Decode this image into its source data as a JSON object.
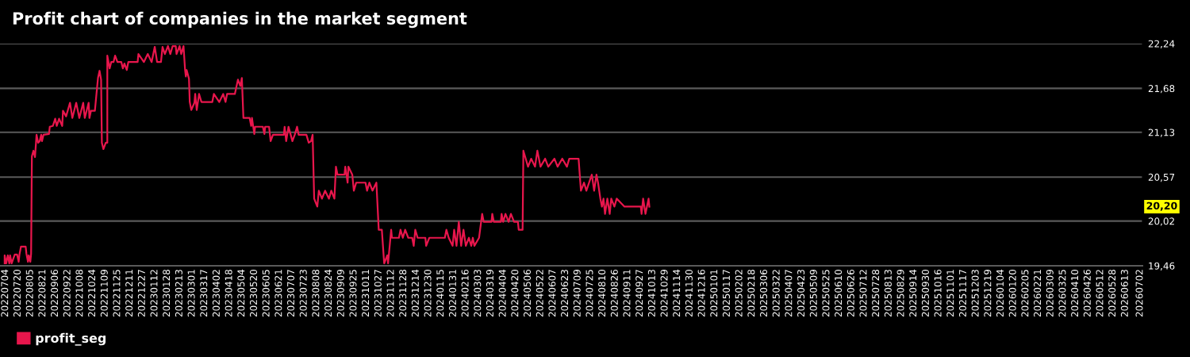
{
  "chart_data": {
    "type": "line",
    "title": "Profit chart of companies in the market segment",
    "x": [
      "2022-07-03",
      "2022-07-03",
      "2022-07-05",
      "2022-07-07",
      "2022-07-09",
      "2022-07-10",
      "2022-07-12",
      "2022-07-16",
      "2022-07-19",
      "2022-07-21",
      "2022-07-22",
      "2022-07-24",
      "2022-07-30",
      "2022-07-31",
      "2022-08-02",
      "2022-08-03",
      "2022-08-05",
      "2022-08-06",
      "2022-08-07",
      "2022-08-09",
      "2022-08-11",
      "2022-08-13",
      "2022-08-15",
      "2022-08-17",
      "2022-08-19",
      "2022-08-20",
      "2022-08-22",
      "2022-08-29",
      "2022-08-30",
      "2022-09-03",
      "2022-09-06",
      "2022-09-08",
      "2022-09-11",
      "2022-09-15",
      "2022-09-16",
      "2022-09-20",
      "2022-09-25",
      "2022-09-28",
      "2022-10-03",
      "2022-10-07",
      "2022-10-12",
      "2022-10-14",
      "2022-10-19",
      "2022-10-20",
      "2022-10-22",
      "2022-10-27",
      "2022-10-31",
      "2022-11-02",
      "2022-11-04",
      "2022-11-05",
      "2022-11-07",
      "2022-11-10",
      "2022-11-12",
      "2022-11-12",
      "2022-11-15",
      "2022-11-17",
      "2022-11-20",
      "2022-11-22",
      "2022-11-25",
      "2022-11-30",
      "2022-12-02",
      "2022-12-04",
      "2022-12-07",
      "2022-12-09",
      "2022-12-21",
      "2022-12-22",
      "2022-12-29",
      "2023-01-03",
      "2023-01-08",
      "2023-01-12",
      "2023-01-15",
      "2023-01-20",
      "2023-01-22",
      "2023-01-25",
      "2023-01-29",
      "2023-02-01",
      "2023-02-04",
      "2023-02-08",
      "2023-02-09",
      "2023-02-13",
      "2023-02-15",
      "2023-02-18",
      "2023-02-20",
      "2023-02-21",
      "2023-02-22",
      "2023-02-25",
      "2023-02-26",
      "2023-02-28",
      "2023-03-04",
      "2023-03-05",
      "2023-03-07",
      "2023-03-10",
      "2023-03-13",
      "2023-03-27",
      "2023-03-29",
      "2023-04-05",
      "2023-04-10",
      "2023-04-13",
      "2023-04-15",
      "2023-04-25",
      "2023-04-29",
      "2023-05-02",
      "2023-05-04",
      "2023-05-06",
      "2023-05-14",
      "2023-05-16",
      "2023-05-17",
      "2023-05-20",
      "2023-05-21",
      "2023-05-31",
      "2023-06-02",
      "2023-06-03",
      "2023-06-08",
      "2023-06-10",
      "2023-06-13",
      "2023-06-27",
      "2023-06-28",
      "2023-06-30",
      "2023-07-03",
      "2023-07-08",
      "2023-07-11",
      "2023-07-14",
      "2023-07-16",
      "2023-07-26",
      "2023-07-29",
      "2023-08-01",
      "2023-08-03",
      "2023-08-05",
      "2023-08-09",
      "2023-08-11",
      "2023-08-15",
      "2023-08-19",
      "2023-08-24",
      "2023-08-27",
      "2023-08-31",
      "2023-09-02",
      "2023-09-04",
      "2023-09-13",
      "2023-09-14",
      "2023-09-17",
      "2023-09-18",
      "2023-09-23",
      "2023-09-25",
      "2023-09-28",
      "2023-10-10",
      "2023-10-12",
      "2023-10-15",
      "2023-10-19",
      "2023-10-24",
      "2023-10-26",
      "2023-10-27",
      "2023-10-31",
      "2023-11-03",
      "2023-11-07",
      "2023-11-08",
      "2023-11-12",
      "2023-11-13",
      "2023-11-22",
      "2023-11-24",
      "2023-11-27",
      "2023-11-30",
      "2023-12-04",
      "2023-12-09",
      "2023-12-11",
      "2023-12-13",
      "2023-12-16",
      "2023-12-26",
      "2023-12-27",
      "2023-12-31",
      "2024-01-20",
      "2024-01-22",
      "2024-01-25",
      "2024-01-30",
      "2024-02-01",
      "2024-02-04",
      "2024-02-07",
      "2024-02-10",
      "2024-02-13",
      "2024-02-16",
      "2024-02-20",
      "2024-02-23",
      "2024-02-25",
      "2024-02-27",
      "2024-03-04",
      "2024-03-08",
      "2024-03-10",
      "2024-03-20",
      "2024-03-21",
      "2024-03-23",
      "2024-04-01",
      "2024-04-02",
      "2024-04-04",
      "2024-04-07",
      "2024-04-11",
      "2024-04-14",
      "2024-04-18",
      "2024-04-23",
      "2024-04-24",
      "2024-04-29",
      "2024-04-30",
      "2024-05-03",
      "2024-05-06",
      "2024-05-10",
      "2024-05-15",
      "2024-05-18",
      "2024-05-22",
      "2024-05-28",
      "2024-06-01",
      "2024-06-09",
      "2024-06-13",
      "2024-06-19",
      "2024-06-25",
      "2024-06-28",
      "2024-07-10",
      "2024-07-13",
      "2024-07-17",
      "2024-07-20",
      "2024-07-27",
      "2024-07-30",
      "2024-08-02",
      "2024-08-04",
      "2024-08-07",
      "2024-08-09",
      "2024-08-11",
      "2024-08-13",
      "2024-08-16",
      "2024-08-19",
      "2024-08-21",
      "2024-08-25",
      "2024-08-28",
      "2024-09-07",
      "2024-09-28",
      "2024-09-29",
      "2024-10-01",
      "2024-10-04",
      "2024-10-08",
      "2024-10-09"
    ],
    "series": [
      {
        "name": "profit_seg",
        "color": "#e8164c",
        "values": [
          19.49,
          19.59,
          19.49,
          19.59,
          19.49,
          19.59,
          19.49,
          19.6,
          19.6,
          19.51,
          19.6,
          19.7,
          19.7,
          19.61,
          19.51,
          19.59,
          19.51,
          19.61,
          20.83,
          20.9,
          20.82,
          21.1,
          21.0,
          21.02,
          21.1,
          21.02,
          21.1,
          21.11,
          21.2,
          21.21,
          21.3,
          21.21,
          21.3,
          21.21,
          21.4,
          21.33,
          21.5,
          21.31,
          21.5,
          21.31,
          21.5,
          21.31,
          21.5,
          21.31,
          21.4,
          21.4,
          21.81,
          21.9,
          21.79,
          21.0,
          20.92,
          21.0,
          21.0,
          22.09,
          21.93,
          22.01,
          22.01,
          22.09,
          22.01,
          22.01,
          21.93,
          21.99,
          21.91,
          22.01,
          22.01,
          22.11,
          22.01,
          22.11,
          22.01,
          22.2,
          22.01,
          22.01,
          22.2,
          22.11,
          22.21,
          22.11,
          22.21,
          22.21,
          22.11,
          22.21,
          22.11,
          22.21,
          21.91,
          21.83,
          21.91,
          21.8,
          21.51,
          21.41,
          21.5,
          21.61,
          21.41,
          21.61,
          21.51,
          21.51,
          21.61,
          21.51,
          21.61,
          21.51,
          21.61,
          21.61,
          21.79,
          21.71,
          21.81,
          21.31,
          21.31,
          21.21,
          21.31,
          21.11,
          21.2,
          21.2,
          21.11,
          21.2,
          21.2,
          21.02,
          21.1,
          21.1,
          21.2,
          21.02,
          21.2,
          21.02,
          21.1,
          21.2,
          21.1,
          21.1,
          21.0,
          21.02,
          21.1,
          20.3,
          20.2,
          20.4,
          20.3,
          20.4,
          20.3,
          20.4,
          20.3,
          20.7,
          20.6,
          20.6,
          20.7,
          20.5,
          20.7,
          20.6,
          20.4,
          20.5,
          20.5,
          20.4,
          20.5,
          20.4,
          20.5,
          20.11,
          19.91,
          19.91,
          19.49,
          19.59,
          19.49,
          19.91,
          19.81,
          19.81,
          19.91,
          19.81,
          19.91,
          19.81,
          19.81,
          19.71,
          19.91,
          19.81,
          19.81,
          19.71,
          19.81,
          19.81,
          19.91,
          19.81,
          19.71,
          19.91,
          19.71,
          20.01,
          19.71,
          19.91,
          19.71,
          19.81,
          19.71,
          19.81,
          19.71,
          19.81,
          20.11,
          20.01,
          20.01,
          20.11,
          20.01,
          20.01,
          20.11,
          20.01,
          20.11,
          20.01,
          20.11,
          20.01,
          20.01,
          19.91,
          19.91,
          20.9,
          20.8,
          20.7,
          20.8,
          20.7,
          20.9,
          20.7,
          20.8,
          20.7,
          20.8,
          20.7,
          20.8,
          20.7,
          20.8,
          20.8,
          20.4,
          20.5,
          20.4,
          20.6,
          20.4,
          20.6,
          20.5,
          20.3,
          20.2,
          20.3,
          20.11,
          20.3,
          20.11,
          20.3,
          20.2,
          20.3,
          20.2,
          20.2,
          20.11,
          20.3,
          20.11,
          20.3,
          20.2
        ]
      }
    ],
    "ylim": [
      19.46,
      22.24
    ],
    "yticks": [
      {
        "value": 19.46,
        "label": "19,46"
      },
      {
        "value": 20.02,
        "label": "20,02"
      },
      {
        "value": 20.57,
        "label": "20,57"
      },
      {
        "value": 21.13,
        "label": "21,13"
      },
      {
        "value": 21.68,
        "label": "21,68"
      },
      {
        "value": 22.24,
        "label": "22,24"
      }
    ],
    "xlim": [
      "2022-06-27",
      "2026-07-05"
    ],
    "xticks": [
      {
        "value": "2022-07-04",
        "label": "20220704"
      },
      {
        "value": "2022-07-20",
        "label": "20220720"
      },
      {
        "value": "2022-08-05",
        "label": "20220805"
      },
      {
        "value": "2022-08-21",
        "label": "20220821"
      },
      {
        "value": "2022-09-06",
        "label": "20220906"
      },
      {
        "value": "2022-09-22",
        "label": "20220922"
      },
      {
        "value": "2022-10-08",
        "label": "20221008"
      },
      {
        "value": "2022-10-24",
        "label": "20221024"
      },
      {
        "value": "2022-11-09",
        "label": "20221109"
      },
      {
        "value": "2022-11-25",
        "label": "20221125"
      },
      {
        "value": "2022-12-11",
        "label": "20221211"
      },
      {
        "value": "2022-12-27",
        "label": "20221227"
      },
      {
        "value": "2023-01-12",
        "label": "20230112"
      },
      {
        "value": "2023-01-28",
        "label": "20230128"
      },
      {
        "value": "2023-02-13",
        "label": "20230213"
      },
      {
        "value": "2023-03-01",
        "label": "20230301"
      },
      {
        "value": "2023-03-17",
        "label": "20230317"
      },
      {
        "value": "2023-04-02",
        "label": "20230402"
      },
      {
        "value": "2023-04-18",
        "label": "20230418"
      },
      {
        "value": "2023-05-04",
        "label": "20230504"
      },
      {
        "value": "2023-05-20",
        "label": "20230520"
      },
      {
        "value": "2023-06-05",
        "label": "20230605"
      },
      {
        "value": "2023-06-21",
        "label": "20230621"
      },
      {
        "value": "2023-07-07",
        "label": "20230707"
      },
      {
        "value": "2023-07-23",
        "label": "20230723"
      },
      {
        "value": "2023-08-08",
        "label": "20230808"
      },
      {
        "value": "2023-08-24",
        "label": "20230824"
      },
      {
        "value": "2023-09-09",
        "label": "20230909"
      },
      {
        "value": "2023-09-25",
        "label": "20230925"
      },
      {
        "value": "2023-10-11",
        "label": "20231011"
      },
      {
        "value": "2023-10-27",
        "label": "20231027"
      },
      {
        "value": "2023-11-12",
        "label": "20231112"
      },
      {
        "value": "2023-11-28",
        "label": "20231128"
      },
      {
        "value": "2023-12-14",
        "label": "20231214"
      },
      {
        "value": "2023-12-30",
        "label": "20231230"
      },
      {
        "value": "2024-01-15",
        "label": "20240115"
      },
      {
        "value": "2024-01-31",
        "label": "20240131"
      },
      {
        "value": "2024-02-16",
        "label": "20240216"
      },
      {
        "value": "2024-03-03",
        "label": "20240303"
      },
      {
        "value": "2024-03-19",
        "label": "20240319"
      },
      {
        "value": "2024-04-04",
        "label": "20240404"
      },
      {
        "value": "2024-04-20",
        "label": "20240420"
      },
      {
        "value": "2024-05-06",
        "label": "20240506"
      },
      {
        "value": "2024-05-22",
        "label": "20240522"
      },
      {
        "value": "2024-06-07",
        "label": "20240607"
      },
      {
        "value": "2024-06-23",
        "label": "20240623"
      },
      {
        "value": "2024-07-09",
        "label": "20240709"
      },
      {
        "value": "2024-07-25",
        "label": "20240725"
      },
      {
        "value": "2024-08-10",
        "label": "20240810"
      },
      {
        "value": "2024-08-26",
        "label": "20240826"
      },
      {
        "value": "2024-09-11",
        "label": "20240911"
      },
      {
        "value": "2024-09-27",
        "label": "20240927"
      },
      {
        "value": "2024-10-13",
        "label": "20241013"
      },
      {
        "value": "2024-10-29",
        "label": "20241029"
      },
      {
        "value": "2024-11-14",
        "label": "20241114"
      },
      {
        "value": "2024-11-30",
        "label": "20241130"
      },
      {
        "value": "2024-12-16",
        "label": "20241216"
      },
      {
        "value": "2025-01-01",
        "label": "20250101"
      },
      {
        "value": "2025-01-17",
        "label": "20250117"
      },
      {
        "value": "2025-02-02",
        "label": "20250202"
      },
      {
        "value": "2025-02-18",
        "label": "20250218"
      },
      {
        "value": "2025-03-06",
        "label": "20250306"
      },
      {
        "value": "2025-03-22",
        "label": "20250322"
      },
      {
        "value": "2025-04-07",
        "label": "20250407"
      },
      {
        "value": "2025-04-23",
        "label": "20250423"
      },
      {
        "value": "2025-05-09",
        "label": "20250509"
      },
      {
        "value": "2025-05-25",
        "label": "20250525"
      },
      {
        "value": "2025-06-10",
        "label": "20250610"
      },
      {
        "value": "2025-06-26",
        "label": "20250626"
      },
      {
        "value": "2025-07-12",
        "label": "20250712"
      },
      {
        "value": "2025-07-28",
        "label": "20250728"
      },
      {
        "value": "2025-08-13",
        "label": "20250813"
      },
      {
        "value": "2025-08-29",
        "label": "20250829"
      },
      {
        "value": "2025-09-14",
        "label": "20250914"
      },
      {
        "value": "2025-09-30",
        "label": "20250930"
      },
      {
        "value": "2025-10-16",
        "label": "20251016"
      },
      {
        "value": "2025-11-01",
        "label": "20251101"
      },
      {
        "value": "2025-11-17",
        "label": "20251117"
      },
      {
        "value": "2025-12-03",
        "label": "20251203"
      },
      {
        "value": "2025-12-19",
        "label": "20251219"
      },
      {
        "value": "2026-01-04",
        "label": "20260104"
      },
      {
        "value": "2026-01-20",
        "label": "20260120"
      },
      {
        "value": "2026-02-05",
        "label": "20260205"
      },
      {
        "value": "2026-02-21",
        "label": "20260221"
      },
      {
        "value": "2026-03-09",
        "label": "20260309"
      },
      {
        "value": "2026-03-25",
        "label": "20260325"
      },
      {
        "value": "2026-04-10",
        "label": "20260410"
      },
      {
        "value": "2026-04-26",
        "label": "20260426"
      },
      {
        "value": "2026-05-12",
        "label": "20260512"
      },
      {
        "value": "2026-05-28",
        "label": "20260528"
      },
      {
        "value": "2026-06-13",
        "label": "20260613"
      },
      {
        "value": "2026-07-02",
        "label": "20260702"
      }
    ],
    "grid": "y",
    "legend": "bottom left",
    "annotations": [
      "20,20"
    ]
  }
}
